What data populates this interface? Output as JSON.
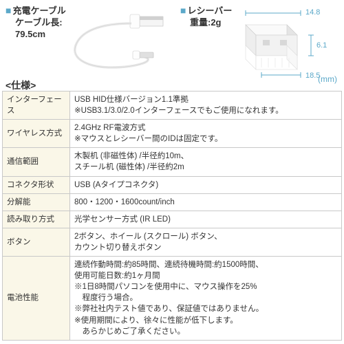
{
  "top": {
    "cable": {
      "title": "充電ケーブル",
      "line2": "ケーブル長:",
      "length": "79.5cm"
    },
    "receiver": {
      "title": "レシーバー",
      "line2": "重量:2g",
      "dim_w": "14.8",
      "dim_h": "6.1",
      "dim_d": "18.5",
      "mm": "(mm)"
    }
  },
  "spec_title": "<仕様>",
  "spec": [
    {
      "label": "インターフェース",
      "value": "USB HID仕様バージョン1.1準拠\n※USB3.1/3.0/2.0インターフェースでもご使用になれます。"
    },
    {
      "label": "ワイヤレス方式",
      "value": "2.4GHz RF電波方式\n※マウスとレシーバー間のIDは固定です。"
    },
    {
      "label": "通信範囲",
      "value": "木製机 (非磁性体) /半径約10m、\nスチール机 (磁性体) /半径約2m"
    },
    {
      "label": "コネクタ形状",
      "value": "USB (Aタイプコネクタ)"
    },
    {
      "label": "分解能",
      "value": "800・1200・1600count/inch"
    },
    {
      "label": "読み取り方式",
      "value": "光学センサー方式 (IR LED)"
    },
    {
      "label": "ボタン",
      "value": "2ボタン、ホイール (スクロール) ボタン、\nカウント切り替えボタン"
    },
    {
      "label": "電池性能",
      "value": "連続作動時間:約85時間、連続待機時間:約1500時間、\n使用可能日数:約1ヶ月間\n※1日8時間パソコンを使用中に、マウス操作を25%\n　程度行う場合。\n※弊社社内テスト値であり、保証値ではありません。\n※使用期間により、徐々に性能が低下します。\n　あらかじめご了承ください。"
    }
  ],
  "colors": {
    "accent": "#5ba8c9",
    "header_bg": "#faf7e8",
    "border": "#c8c8c8",
    "text": "#333333"
  }
}
